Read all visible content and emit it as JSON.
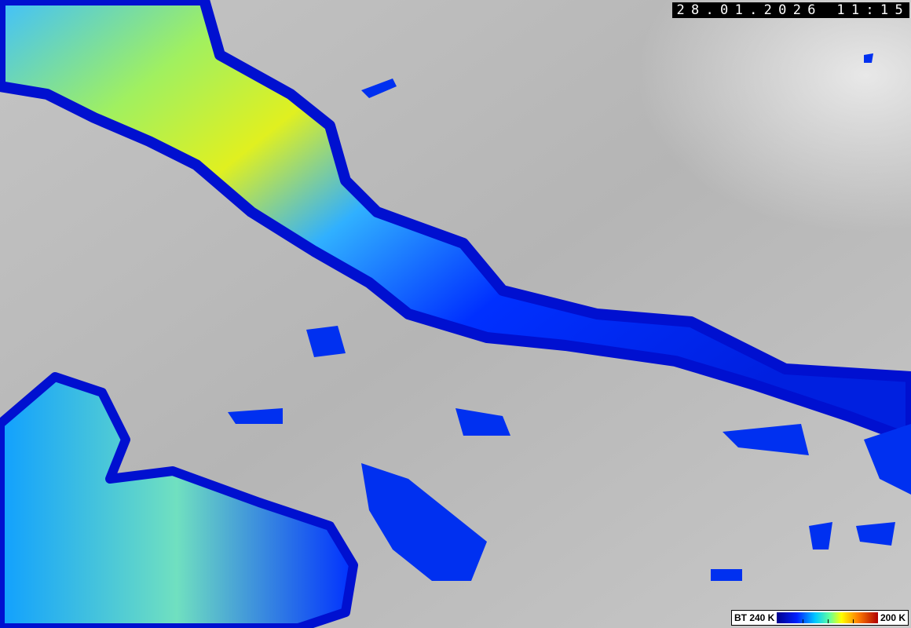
{
  "image": {
    "type": "satellite brightness temperature image",
    "timestamp": "28.01.2026 11:15",
    "colors": {
      "background_gray": "#bdbdbd",
      "cold_blue": "#0020ff",
      "cyan": "#00c8ff",
      "yellow": "#ffff00",
      "red": "#b00000"
    }
  },
  "legend": {
    "left_label": "BT 240 K",
    "right_label": "200 K",
    "ticks": 3
  }
}
